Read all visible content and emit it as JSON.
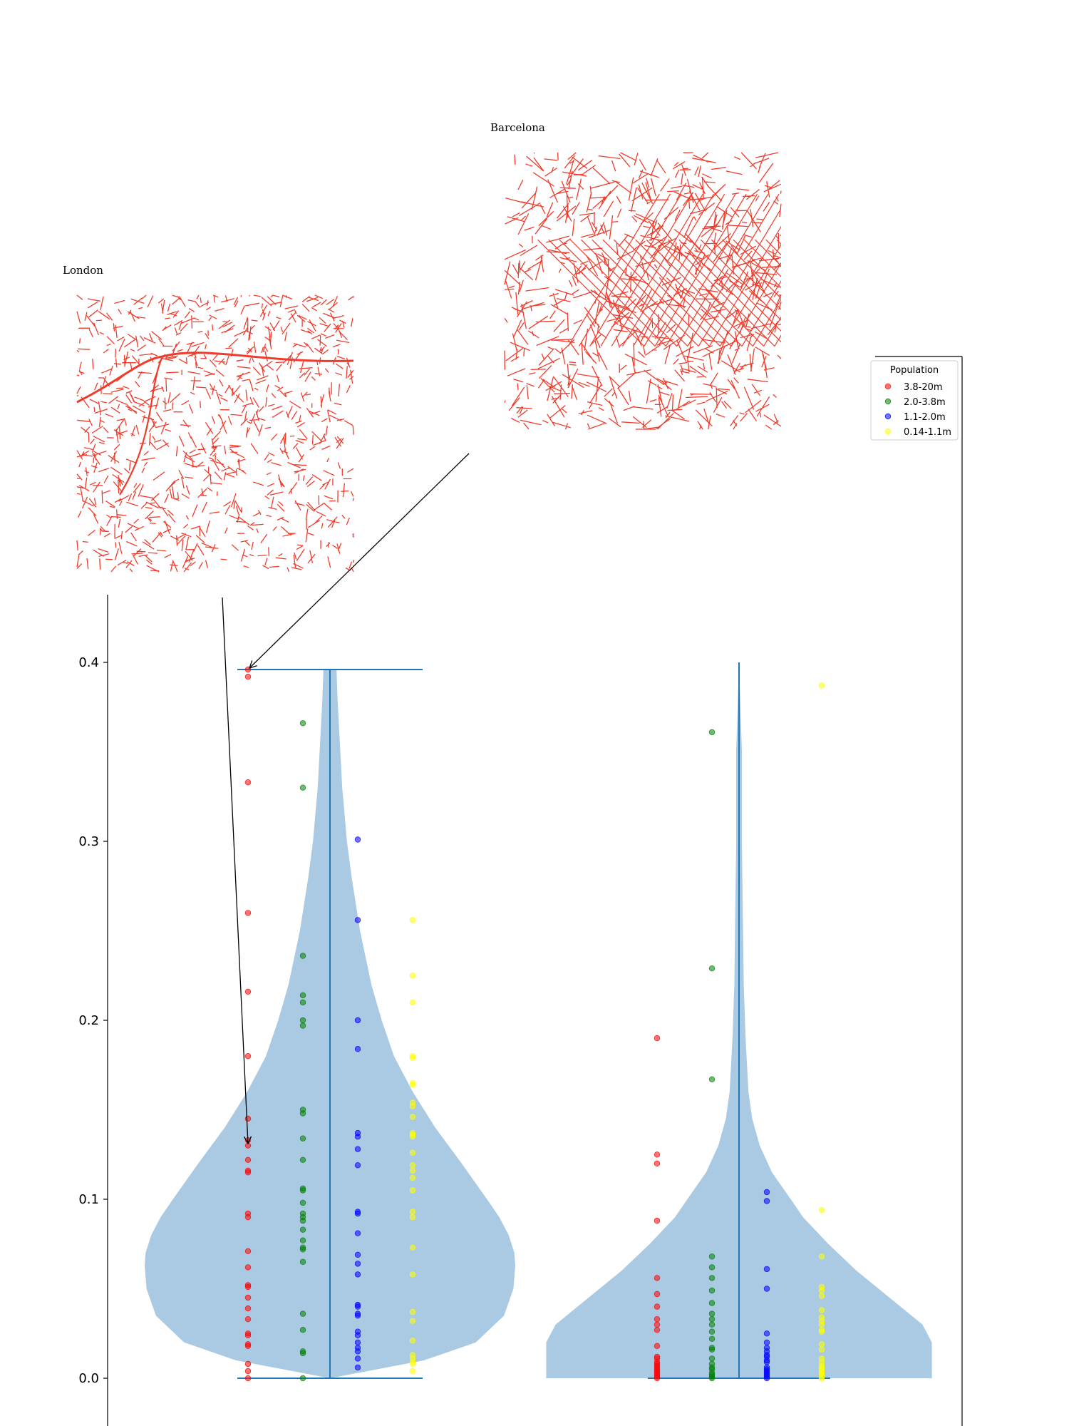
{
  "chart_data": {
    "type": "violin",
    "ylim": [
      0,
      0.4
    ],
    "yticks": [
      0.0,
      0.1,
      0.2,
      0.3,
      0.4
    ],
    "ytick_labels": [
      "0.0",
      "0.1",
      "0.2",
      "0.3",
      "0.4"
    ],
    "grid": false,
    "violin_color": "#aac9e2",
    "line_color": "#1f77b4",
    "legend": {
      "title": "Population",
      "placement": "top-right",
      "entries": [
        {
          "label": "3.8-20m",
          "color": "#ff0000"
        },
        {
          "label": "2.0-3.8m",
          "color": "#008000"
        },
        {
          "label": "1.1-2.0m",
          "color": "#0000ff"
        },
        {
          "label": "0.14-1.1m",
          "color": "#ffff00"
        }
      ]
    },
    "insets": [
      {
        "title": "London",
        "kind": "street-map",
        "color": "#f03b2b"
      },
      {
        "title": "Barcelona",
        "kind": "street-map",
        "color": "#f03b2b"
      }
    ],
    "annotations": [
      {
        "target": "London",
        "points_to_y": 0.13
      },
      {
        "target": "Barcelona",
        "points_to_y": 0.396
      }
    ],
    "violins": [
      {
        "max": 0.396,
        "min": 0.0,
        "profile": [
          [
            0,
            0.0
          ],
          [
            0.01,
            0.1
          ],
          [
            0.02,
            0.155
          ],
          [
            0.035,
            0.185
          ],
          [
            0.05,
            0.195
          ],
          [
            0.063,
            0.197
          ],
          [
            0.07,
            0.196
          ],
          [
            0.08,
            0.19
          ],
          [
            0.09,
            0.18
          ],
          [
            0.1,
            0.167
          ],
          [
            0.12,
            0.14
          ],
          [
            0.14,
            0.112
          ],
          [
            0.16,
            0.088
          ],
          [
            0.18,
            0.068
          ],
          [
            0.2,
            0.055
          ],
          [
            0.22,
            0.044
          ],
          [
            0.25,
            0.032
          ],
          [
            0.28,
            0.023
          ],
          [
            0.3,
            0.018
          ],
          [
            0.33,
            0.013
          ],
          [
            0.36,
            0.01
          ],
          [
            0.38,
            0.008
          ],
          [
            0.396,
            0.007
          ]
        ],
        "series": [
          {
            "name": "3.8-20m",
            "y": [
              0.396,
              0.392,
              0.333,
              0.26,
              0.216,
              0.18,
              0.145,
              0.133,
              0.13,
              0.122,
              0.116,
              0.115,
              0.092,
              0.09,
              0.071,
              0.062,
              0.052,
              0.051,
              0.045,
              0.039,
              0.033,
              0.025,
              0.024,
              0.019,
              0.018,
              0.008,
              0.004,
              0.0
            ]
          },
          {
            "name": "2.0-3.8m",
            "y": [
              0.366,
              0.33,
              0.236,
              0.214,
              0.21,
              0.2,
              0.197,
              0.15,
              0.148,
              0.134,
              0.122,
              0.106,
              0.105,
              0.098,
              0.092,
              0.09,
              0.088,
              0.083,
              0.077,
              0.073,
              0.072,
              0.065,
              0.036,
              0.027,
              0.015,
              0.014,
              0.0
            ]
          },
          {
            "name": "1.1-2.0m",
            "y": [
              0.301,
              0.256,
              0.2,
              0.184,
              0.137,
              0.135,
              0.128,
              0.119,
              0.093,
              0.092,
              0.081,
              0.069,
              0.064,
              0.058,
              0.041,
              0.04,
              0.036,
              0.035,
              0.026,
              0.024,
              0.02,
              0.017,
              0.015,
              0.011,
              0.006
            ]
          },
          {
            "name": "0.14-1.1m",
            "y": [
              0.256,
              0.225,
              0.21,
              0.18,
              0.179,
              0.165,
              0.164,
              0.154,
              0.152,
              0.146,
              0.137,
              0.136,
              0.135,
              0.126,
              0.119,
              0.116,
              0.112,
              0.105,
              0.093,
              0.09,
              0.073,
              0.058,
              0.037,
              0.032,
              0.021,
              0.013,
              0.011,
              0.009,
              0.008,
              0.004
            ]
          }
        ]
      },
      {
        "max": 0.4,
        "min": 0.0,
        "profile": [
          [
            0,
            0.205
          ],
          [
            0.01,
            0.205
          ],
          [
            0.02,
            0.205
          ],
          [
            0.03,
            0.195
          ],
          [
            0.045,
            0.16
          ],
          [
            0.06,
            0.125
          ],
          [
            0.075,
            0.095
          ],
          [
            0.09,
            0.068
          ],
          [
            0.1,
            0.055
          ],
          [
            0.115,
            0.035
          ],
          [
            0.13,
            0.022
          ],
          [
            0.145,
            0.014
          ],
          [
            0.16,
            0.01
          ],
          [
            0.19,
            0.007
          ],
          [
            0.22,
            0.005
          ],
          [
            0.26,
            0.004
          ],
          [
            0.3,
            0.003
          ],
          [
            0.35,
            0.003
          ],
          [
            0.4,
            0.0
          ]
        ],
        "series": [
          {
            "name": "3.8-20m",
            "y": [
              0.19,
              0.125,
              0.12,
              0.088,
              0.056,
              0.047,
              0.04,
              0.033,
              0.03,
              0.027,
              0.018,
              0.012,
              0.011,
              0.009,
              0.008,
              0.007,
              0.006,
              0.005,
              0.004,
              0.003,
              0.002,
              0.001,
              0.0
            ]
          },
          {
            "name": "2.0-3.8m",
            "y": [
              0.361,
              0.229,
              0.167,
              0.068,
              0.062,
              0.056,
              0.049,
              0.042,
              0.036,
              0.033,
              0.03,
              0.026,
              0.022,
              0.017,
              0.016,
              0.011,
              0.008,
              0.006,
              0.005,
              0.003,
              0.002,
              0.001,
              0.0
            ]
          },
          {
            "name": "1.1-2.0m",
            "y": [
              0.104,
              0.099,
              0.061,
              0.05,
              0.025,
              0.02,
              0.017,
              0.015,
              0.013,
              0.012,
              0.01,
              0.009,
              0.006,
              0.005,
              0.004,
              0.003,
              0.002,
              0.001,
              0.0
            ]
          },
          {
            "name": "0.14-1.1m",
            "y": [
              0.387,
              0.094,
              0.068,
              0.051,
              0.049,
              0.046,
              0.038,
              0.034,
              0.032,
              0.03,
              0.027,
              0.026,
              0.019,
              0.016,
              0.011,
              0.009,
              0.007,
              0.006,
              0.005,
              0.004,
              0.003,
              0.002,
              0.001,
              0.0
            ]
          }
        ]
      }
    ]
  }
}
